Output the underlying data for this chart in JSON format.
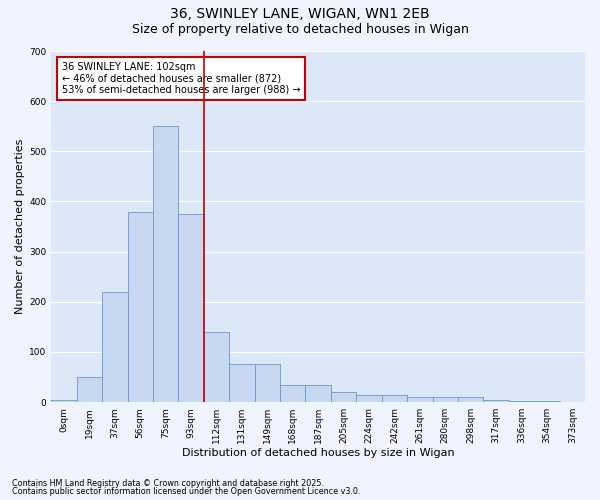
{
  "title_line1": "36, SWINLEY LANE, WIGAN, WN1 2EB",
  "title_line2": "Size of property relative to detached houses in Wigan",
  "xlabel": "Distribution of detached houses by size in Wigan",
  "ylabel": "Number of detached properties",
  "annotation_line1": "36 SWINLEY LANE: 102sqm",
  "annotation_line2": "← 46% of detached houses are smaller (872)",
  "annotation_line3": "53% of semi-detached houses are larger (988) →",
  "footnote1": "Contains HM Land Registry data © Crown copyright and database right 2025.",
  "footnote2": "Contains public sector information licensed under the Open Government Licence v3.0.",
  "bar_labels": [
    "0sqm",
    "19sqm",
    "37sqm",
    "56sqm",
    "75sqm",
    "93sqm",
    "112sqm",
    "131sqm",
    "149sqm",
    "168sqm",
    "187sqm",
    "205sqm",
    "224sqm",
    "242sqm",
    "261sqm",
    "280sqm",
    "298sqm",
    "317sqm",
    "336sqm",
    "354sqm",
    "373sqm"
  ],
  "bar_values": [
    5,
    50,
    220,
    380,
    550,
    375,
    140,
    75,
    75,
    35,
    35,
    20,
    15,
    15,
    10,
    10,
    10,
    5,
    2,
    2,
    1
  ],
  "bar_color": "#c8d8f0",
  "bar_edge_color": "#6699cc",
  "vline_x": 5.5,
  "vline_color": "#cc0000",
  "annotation_box_color": "#cc0000",
  "bg_color": "#dce8f8",
  "fig_color": "#f0f4ff",
  "ylim": [
    0,
    700
  ],
  "yticks": [
    0,
    100,
    200,
    300,
    400,
    500,
    600,
    700
  ],
  "grid_color": "#ffffff",
  "title_fontsize": 10,
  "subtitle_fontsize": 9,
  "axis_label_fontsize": 8,
  "tick_fontsize": 6.5,
  "annotation_fontsize": 7,
  "footnote_fontsize": 5.8
}
